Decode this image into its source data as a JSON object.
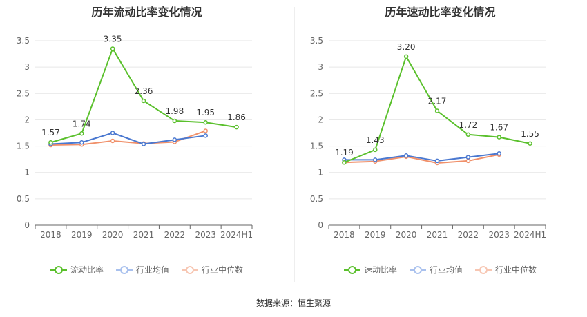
{
  "source_text": "数据来源：恒生聚源",
  "colors": {
    "main": "#5ac02c",
    "avg": "#4a78d0",
    "median": "#f0906a",
    "grid": "#e6e6e6",
    "axis": "#666666"
  },
  "chart_data": [
    {
      "type": "line",
      "title": "历年流动比率变化情况",
      "categories": [
        "2018",
        "2019",
        "2020",
        "2021",
        "2022",
        "2023",
        "2024H1"
      ],
      "yticks": [
        "0",
        "0.5",
        "1",
        "1.5",
        "2",
        "2.5",
        "3",
        "3.5"
      ],
      "ylim": [
        0,
        3.5
      ],
      "grid": true,
      "legend_position": "bottom",
      "series": [
        {
          "name": "流动比率",
          "color": "#5ac02c",
          "values": [
            1.57,
            1.74,
            3.35,
            2.36,
            1.98,
            1.95,
            1.86
          ],
          "labels": [
            "1.57",
            "1.74",
            "3.35",
            "2.36",
            "1.98",
            "1.95",
            "1.86"
          ]
        },
        {
          "name": "行业均值",
          "color": "#4a78d0",
          "values": [
            1.54,
            1.57,
            1.75,
            1.54,
            1.62,
            1.7,
            null
          ]
        },
        {
          "name": "行业中位数",
          "color": "#f0906a",
          "values": [
            1.52,
            1.53,
            1.6,
            1.55,
            1.58,
            1.79,
            null
          ]
        }
      ]
    },
    {
      "type": "line",
      "title": "历年速动比率变化情况",
      "categories": [
        "2018",
        "2019",
        "2020",
        "2021",
        "2022",
        "2023",
        "2024H1"
      ],
      "yticks": [
        "0",
        "0.5",
        "1",
        "1.5",
        "2",
        "2.5",
        "3",
        "3.5"
      ],
      "ylim": [
        0,
        3.5
      ],
      "grid": true,
      "legend_position": "bottom",
      "series": [
        {
          "name": "速动比率",
          "color": "#5ac02c",
          "values": [
            1.19,
            1.43,
            3.2,
            2.17,
            1.72,
            1.67,
            1.55
          ],
          "labels": [
            "1.19",
            "1.43",
            "3.20",
            "2.17",
            "1.72",
            "1.67",
            "1.55"
          ]
        },
        {
          "name": "行业均值",
          "color": "#4a78d0",
          "values": [
            1.24,
            1.24,
            1.32,
            1.22,
            1.29,
            1.36,
            null
          ]
        },
        {
          "name": "行业中位数",
          "color": "#f0906a",
          "values": [
            1.19,
            1.21,
            1.3,
            1.18,
            1.22,
            1.34,
            null
          ]
        }
      ]
    }
  ]
}
